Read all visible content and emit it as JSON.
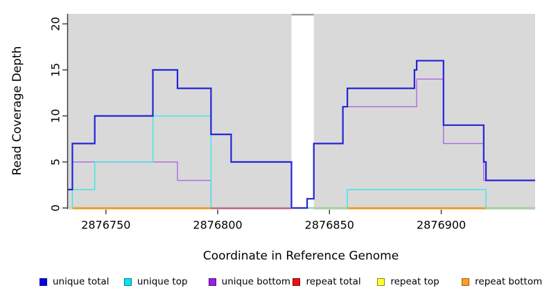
{
  "chart_data": {
    "type": "line",
    "subtype": "step-coverage",
    "title": "",
    "xlabel": "Coordinate in Reference Genome",
    "ylabel": "Read Coverage Depth",
    "xlim": [
      2876733,
      2876942
    ],
    "ylim": [
      0,
      21
    ],
    "x_ticks": [
      2876750,
      2876800,
      2876850,
      2876900
    ],
    "y_ticks": [
      0,
      5,
      10,
      15,
      20
    ],
    "grid": false,
    "legend_position": "bottom",
    "background": {
      "panel_color": "#d9d9d9",
      "gap_x": [
        2876833,
        2876843
      ],
      "gap_top_edge_color": "#999999"
    },
    "series": [
      {
        "name": "repeat total",
        "color": "#ee1111",
        "width": 1.4,
        "points": [
          [
            2876733,
            0
          ],
          [
            2876942,
            0
          ]
        ]
      },
      {
        "name": "repeat top",
        "color": "#f2e71f",
        "width": 1.4,
        "points": [
          [
            2876733,
            0
          ],
          [
            2876942,
            0
          ]
        ]
      },
      {
        "name": "repeat bottom",
        "color": "#ff9300",
        "width": 2,
        "points": [
          [
            2876733,
            0
          ],
          [
            2876942,
            0
          ]
        ]
      },
      {
        "name": "unique bottom",
        "color": "#ad6fe3",
        "width": 1.5,
        "points": [
          [
            2876733,
            2
          ],
          [
            2876735,
            5
          ],
          [
            2876782,
            3
          ],
          [
            2876797,
            0
          ],
          [
            2876840,
            1
          ],
          [
            2876843,
            7
          ],
          [
            2876856,
            11
          ],
          [
            2876889,
            14
          ],
          [
            2876901,
            7
          ],
          [
            2876919,
            3
          ],
          [
            2876942,
            3
          ]
        ]
      },
      {
        "name": "unique top",
        "color": "#45e6e6",
        "width": 1.5,
        "points": [
          [
            2876733,
            0
          ],
          [
            2876735,
            2
          ],
          [
            2876745,
            5
          ],
          [
            2876771,
            10
          ],
          [
            2876797,
            0
          ],
          [
            2876858,
            2
          ],
          [
            2876920,
            0
          ],
          [
            2876942,
            0
          ]
        ]
      },
      {
        "name": "unique total",
        "color": "#2323d8",
        "width": 2.2,
        "points": [
          [
            2876733,
            2
          ],
          [
            2876735,
            7
          ],
          [
            2876745,
            10
          ],
          [
            2876771,
            15
          ],
          [
            2876782,
            13
          ],
          [
            2876797,
            8
          ],
          [
            2876806,
            5
          ],
          [
            2876833,
            0
          ],
          [
            2876840,
            1
          ],
          [
            2876843,
            7
          ],
          [
            2876856,
            11
          ],
          [
            2876858,
            13
          ],
          [
            2876888,
            15
          ],
          [
            2876889,
            16
          ],
          [
            2876901,
            9
          ],
          [
            2876919,
            5
          ],
          [
            2876920,
            3
          ],
          [
            2876942,
            3
          ]
        ]
      }
    ],
    "baseline_overlay": [
      {
        "from": 2876733,
        "to": 2876735,
        "color": "#bcecea"
      },
      {
        "from": 2876735,
        "to": 2876797,
        "color": "#ff9300"
      },
      {
        "from": 2876797,
        "to": 2876833,
        "color": "#cb5a78"
      },
      {
        "from": 2876843,
        "to": 2876858,
        "color": "#9dd6a8"
      },
      {
        "from": 2876858,
        "to": 2876920,
        "color": "#ff9300"
      },
      {
        "from": 2876920,
        "to": 2876942,
        "color": "#9dd6a8"
      }
    ]
  },
  "legend": {
    "items": [
      {
        "label": "unique total",
        "fill": "#0000e5",
        "border": "#00008b"
      },
      {
        "label": "unique top",
        "fill": "#00e5ee",
        "border": "#007f8c"
      },
      {
        "label": "unique bottom",
        "fill": "#9b1fe8",
        "border": "#4b0f7a"
      },
      {
        "label": "repeat total",
        "fill": "#ee1111",
        "border": "#7a0000"
      },
      {
        "label": "repeat top",
        "fill": "#ffff33",
        "border": "#8c8c00"
      },
      {
        "label": "repeat bottom",
        "fill": "#ff9d26",
        "border": "#9c5f00"
      }
    ]
  }
}
